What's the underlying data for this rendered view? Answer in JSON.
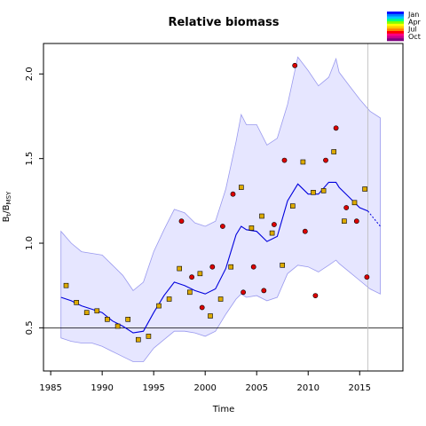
{
  "chart_data": {
    "type": "line",
    "title": "Relative biomass",
    "xlabel": "Time",
    "ylabel_main": "B",
    "ylabel_sub1": "t",
    "ylabel_mid": "/B",
    "ylabel_sub2": "MSY",
    "xlim": [
      1984.3,
      2019.2
    ],
    "ylim": [
      0.245,
      2.18
    ],
    "xticks": [
      1985,
      1990,
      1995,
      2000,
      2005,
      2010,
      2015
    ],
    "yticks": [
      0.5,
      1.0,
      1.5,
      2.0
    ],
    "xtick_labels": [
      "1985",
      "1990",
      "1995",
      "2000",
      "2005",
      "2010",
      "2015"
    ],
    "ytick_labels": [
      "0.5",
      "1.0",
      "1.5",
      "2.0"
    ],
    "reference_line_y": 0.5,
    "vertical_line_x": 2015.8,
    "legend": {
      "placement": "top-right",
      "entries": [
        "Jan",
        "Apr",
        "Jul",
        "Oct"
      ],
      "colors": [
        "#0000ff",
        "#0080ff",
        "#00c8ff",
        "#00ff80",
        "#80ff00",
        "#ffff00",
        "#ffc800",
        "#ff8000",
        "#ff0000",
        "#ff0080",
        "#c8008c",
        "#800080"
      ]
    },
    "colors": {
      "band_fill": "#e6e6ff",
      "band_edge": "#9999ee",
      "median_line": "#0000dd",
      "square_fill": "#ddaa00",
      "circle_fill": "#dd0000"
    },
    "median": {
      "x": [
        1986,
        1987,
        1988,
        1989,
        1990,
        1991,
        1992,
        1993,
        1994,
        1995,
        1996,
        1997,
        1998,
        1999,
        2000,
        2001,
        2002,
        2003,
        2003.5,
        2004,
        2005,
        2006,
        2007,
        2008,
        2009,
        2010,
        2011,
        2012,
        2012.7,
        2013,
        2014,
        2015,
        2015.8
      ],
      "y": [
        0.68,
        0.66,
        0.63,
        0.61,
        0.59,
        0.54,
        0.51,
        0.47,
        0.48,
        0.59,
        0.69,
        0.77,
        0.75,
        0.72,
        0.7,
        0.73,
        0.85,
        1.05,
        1.1,
        1.08,
        1.07,
        1.01,
        1.04,
        1.25,
        1.35,
        1.29,
        1.29,
        1.36,
        1.36,
        1.33,
        1.27,
        1.21,
        1.19
      ]
    },
    "projection": {
      "x": [
        2015.8,
        2017
      ],
      "y": [
        1.19,
        1.1
      ]
    },
    "band": {
      "x": [
        1986,
        1987,
        1988,
        1989,
        1990,
        1991,
        1992,
        1993,
        1994,
        1995,
        1996,
        1997,
        1998,
        1999,
        2000,
        2001,
        2002,
        2003,
        2003.5,
        2004,
        2005,
        2006,
        2007,
        2008,
        2009,
        2010,
        2011,
        2012,
        2012.7,
        2013,
        2014,
        2015,
        2016,
        2017
      ],
      "upper": [
        1.07,
        1.0,
        0.95,
        0.94,
        0.93,
        0.87,
        0.81,
        0.72,
        0.77,
        0.95,
        1.08,
        1.2,
        1.18,
        1.12,
        1.1,
        1.13,
        1.32,
        1.6,
        1.76,
        1.7,
        1.7,
        1.58,
        1.62,
        1.82,
        2.1,
        2.02,
        1.93,
        1.98,
        2.09,
        2.01,
        1.93,
        1.85,
        1.78,
        1.74
      ],
      "lower": [
        0.44,
        0.42,
        0.41,
        0.41,
        0.39,
        0.36,
        0.33,
        0.3,
        0.3,
        0.38,
        0.43,
        0.48,
        0.48,
        0.47,
        0.45,
        0.48,
        0.58,
        0.67,
        0.7,
        0.68,
        0.69,
        0.66,
        0.68,
        0.82,
        0.87,
        0.86,
        0.83,
        0.87,
        0.9,
        0.88,
        0.83,
        0.78,
        0.73,
        0.7
      ]
    },
    "squares": {
      "x": [
        1986.5,
        1987.5,
        1988.5,
        1989.5,
        1990.5,
        1991.5,
        1992.5,
        1993.5,
        1994.5,
        1995.5,
        1996.5,
        1997.5,
        1998.5,
        1999.5,
        2000.5,
        2001.5,
        2002.5,
        2003.5,
        2004.5,
        2005.5,
        2006.5,
        2007.5,
        2008.5,
        2009.5,
        2010.5,
        2011.5,
        2012.5,
        2013.5,
        2014.5,
        2015.5
      ],
      "y": [
        0.75,
        0.65,
        0.59,
        0.6,
        0.55,
        0.51,
        0.55,
        0.43,
        0.45,
        0.63,
        0.67,
        0.85,
        0.71,
        0.82,
        0.57,
        0.67,
        0.86,
        1.33,
        1.09,
        1.16,
        1.06,
        0.87,
        1.22,
        1.48,
        1.3,
        1.31,
        1.54,
        1.13,
        1.24,
        1.32
      ]
    },
    "circles": {
      "x": [
        1997.7,
        1998.7,
        1999.7,
        2000.7,
        2001.7,
        2002.7,
        2003.7,
        2004.7,
        2005.7,
        2006.7,
        2007.7,
        2008.7,
        2009.7,
        2010.7,
        2011.7,
        2012.7,
        2013.7,
        2014.7,
        2015.7
      ],
      "y": [
        1.13,
        0.8,
        0.62,
        0.86,
        1.1,
        1.29,
        0.71,
        0.86,
        0.72,
        1.11,
        1.49,
        2.05,
        1.07,
        0.69,
        1.49,
        1.68,
        1.21,
        1.13,
        0.8
      ]
    }
  }
}
